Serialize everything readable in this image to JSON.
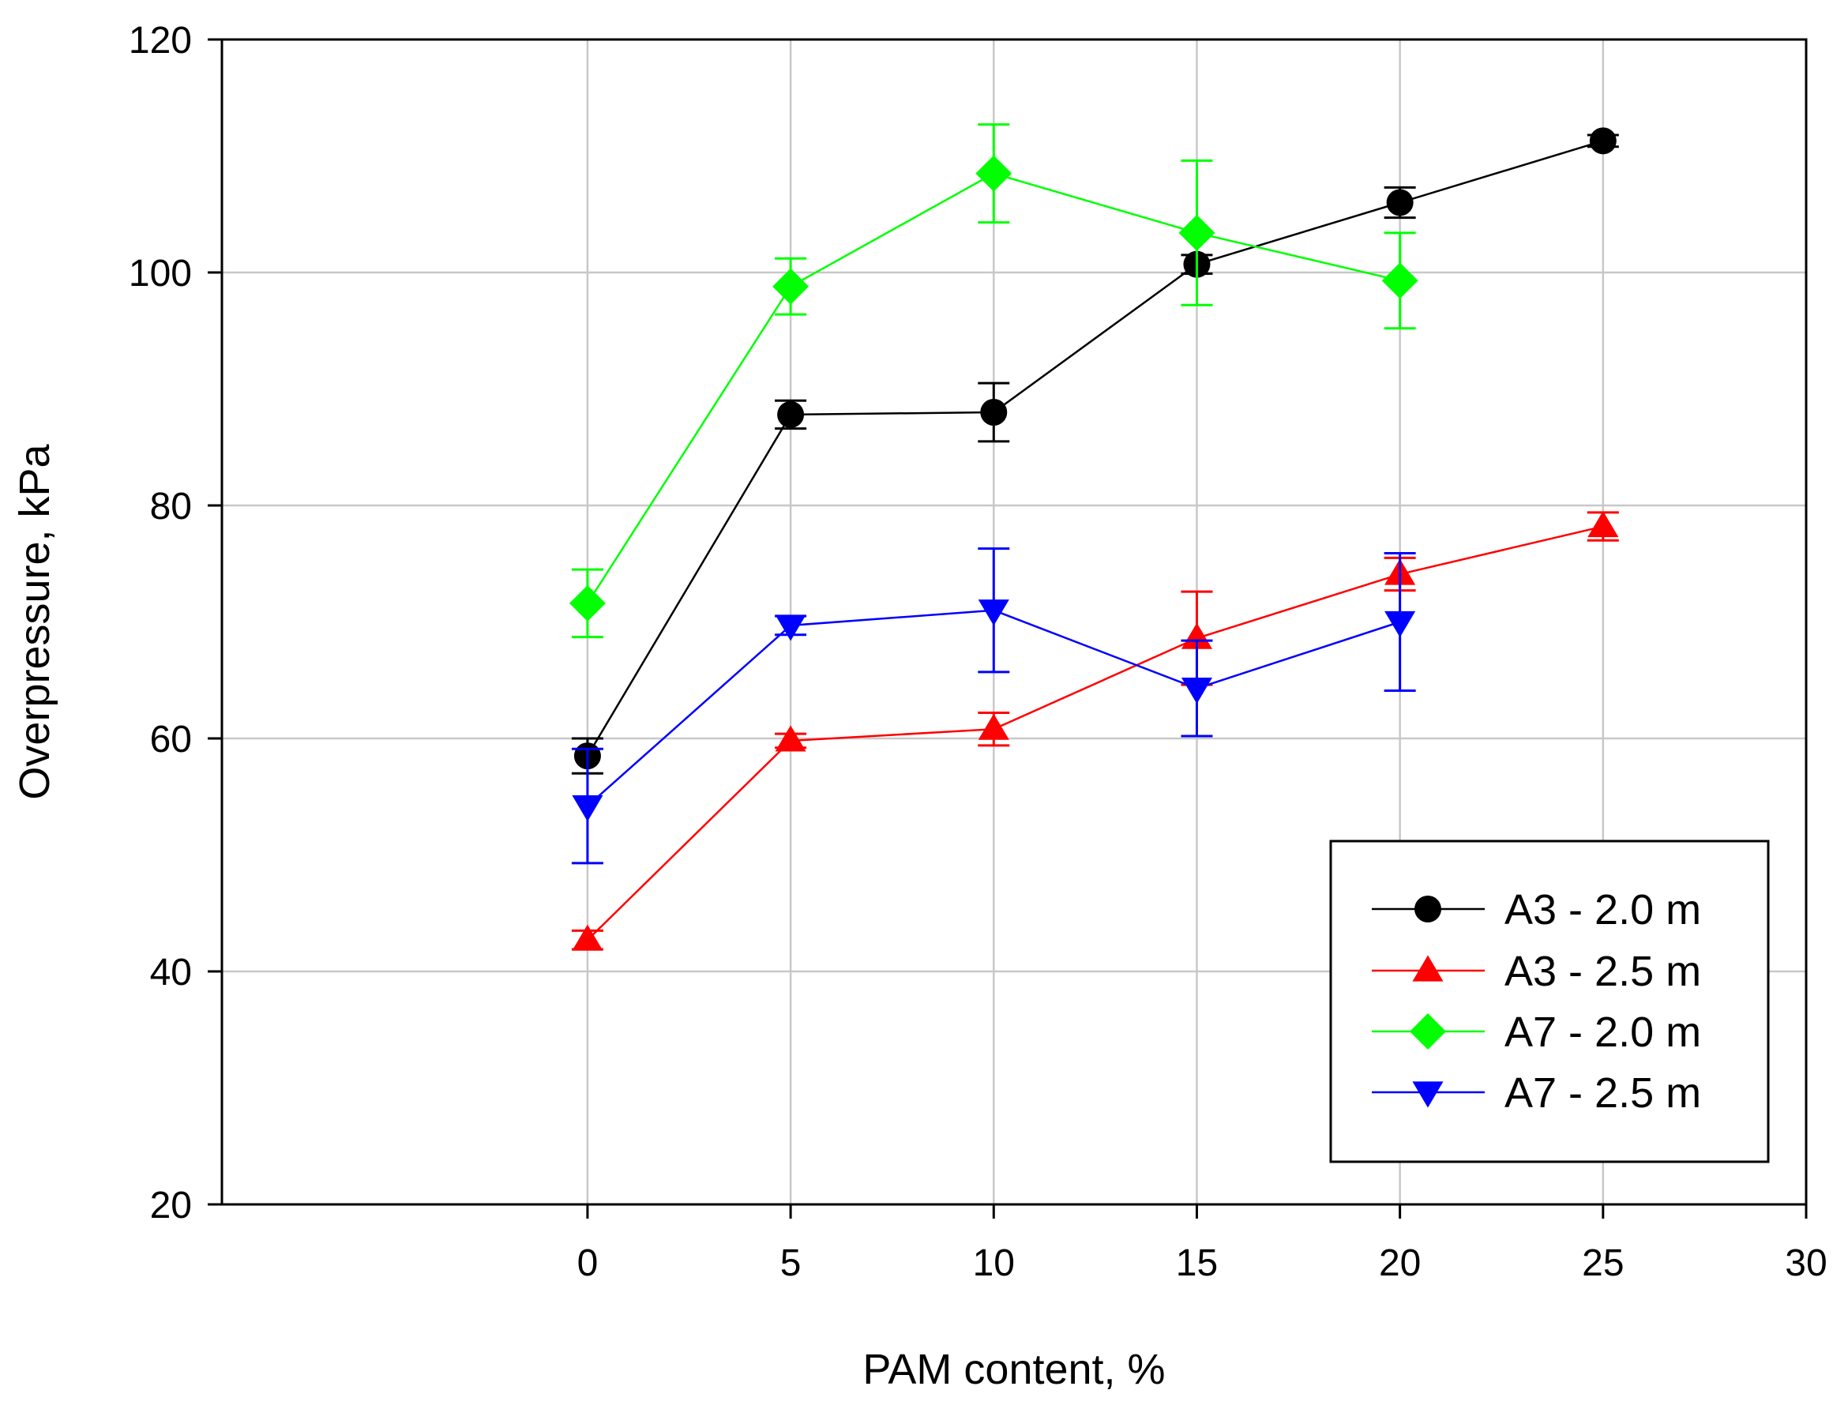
{
  "chart_data": {
    "type": "line",
    "title": "",
    "xlabel": "PAM content, %",
    "ylabel": "Overpressure, kPa",
    "xlim": [
      -9,
      30
    ],
    "ylim": [
      20,
      120
    ],
    "xticks": [
      0,
      5,
      10,
      15,
      20,
      25,
      30
    ],
    "xtick_labels": [
      "0",
      "5",
      "10",
      "15",
      "20",
      "25",
      "30"
    ],
    "yticks": [
      20,
      40,
      60,
      80,
      100,
      120
    ],
    "ytick_labels": [
      "20",
      "40",
      "60",
      "80",
      "100",
      "120"
    ],
    "grid": true,
    "legend_position": "bottom-right",
    "series": [
      {
        "name": "A3 - 2.0 m",
        "color": "#000000",
        "marker": "circle",
        "x": [
          0,
          5,
          10,
          15,
          20,
          25
        ],
        "y": [
          58.5,
          87.8,
          88.0,
          100.7,
          106.0,
          111.3
        ],
        "err_plus": [
          1.5,
          1.2,
          2.5,
          0.8,
          1.3,
          0.5
        ],
        "err_minus": [
          1.5,
          1.2,
          2.5,
          0.8,
          1.3,
          0.5
        ]
      },
      {
        "name": "A3 - 2.5 m",
        "color": "#ff0000",
        "marker": "triangle-up",
        "x": [
          0,
          5,
          10,
          15,
          20,
          25
        ],
        "y": [
          42.7,
          59.8,
          60.8,
          68.6,
          74.1,
          78.2
        ],
        "err_plus": [
          0.8,
          0.6,
          1.4,
          4.0,
          1.4,
          1.2
        ],
        "err_minus": [
          0.8,
          0.6,
          1.4,
          4.0,
          1.4,
          1.2
        ]
      },
      {
        "name": "A7 - 2.0 m",
        "color": "#00ff00",
        "marker": "diamond",
        "x": [
          0,
          5,
          10,
          15,
          20
        ],
        "y": [
          71.6,
          98.8,
          108.5,
          103.4,
          99.3
        ],
        "err_plus": [
          2.9,
          2.4,
          4.2,
          6.2,
          4.1
        ],
        "err_minus": [
          2.9,
          2.4,
          4.2,
          6.2,
          4.1
        ]
      },
      {
        "name": "A7 - 2.5 m",
        "color": "#0000ff",
        "marker": "triangle-down",
        "x": [
          0,
          5,
          10,
          15,
          20
        ],
        "y": [
          54.2,
          69.7,
          71.0,
          64.3,
          70.0
        ],
        "err_plus": [
          4.9,
          0.8,
          5.3,
          4.1,
          5.9
        ],
        "err_minus": [
          4.9,
          0.8,
          5.3,
          4.1,
          5.9
        ]
      }
    ]
  }
}
